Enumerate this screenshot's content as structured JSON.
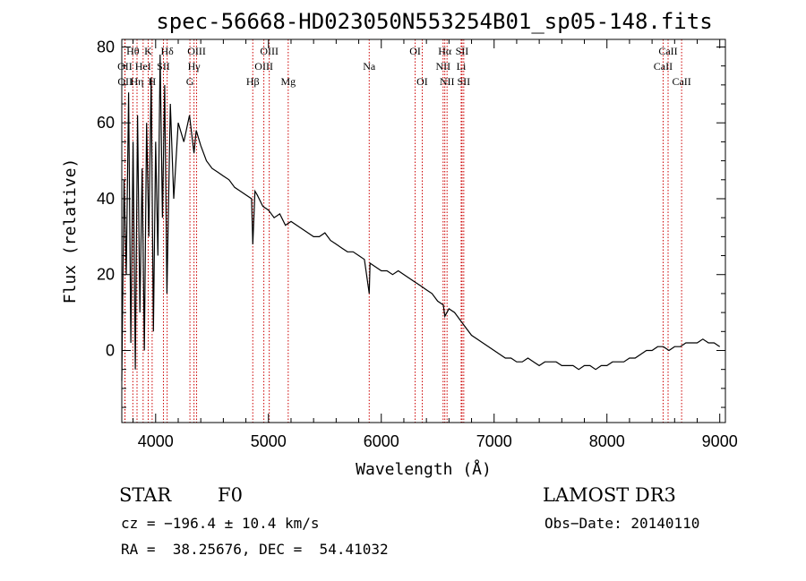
{
  "chart_data": {
    "type": "line",
    "title": "spec-56668-HD023050N553254B01_sp05-148.fits",
    "xlabel": "Wavelength (Å)",
    "ylabel": "Flux (relative)",
    "xlim": [
      3700,
      9050
    ],
    "ylim": [
      -19,
      82
    ],
    "xticks": [
      4000,
      5000,
      6000,
      7000,
      8000,
      9000
    ],
    "yticks": [
      0,
      20,
      40,
      60,
      80
    ],
    "series": [
      {
        "name": "spectrum",
        "x": [
          3700,
          3720,
          3740,
          3760,
          3780,
          3800,
          3820,
          3840,
          3860,
          3880,
          3900,
          3920,
          3940,
          3960,
          3980,
          4000,
          4020,
          4040,
          4060,
          4080,
          4100,
          4130,
          4160,
          4200,
          4250,
          4300,
          4340,
          4360,
          4400,
          4450,
          4500,
          4550,
          4600,
          4650,
          4700,
          4750,
          4800,
          4850,
          4861,
          4880,
          4900,
          4950,
          5000,
          5050,
          5100,
          5150,
          5200,
          5250,
          5300,
          5350,
          5400,
          5450,
          5500,
          5550,
          5600,
          5650,
          5700,
          5750,
          5800,
          5850,
          5893,
          5900,
          5950,
          6000,
          6050,
          6100,
          6150,
          6200,
          6250,
          6300,
          6350,
          6400,
          6450,
          6500,
          6550,
          6563,
          6600,
          6650,
          6700,
          6750,
          6800,
          6850,
          6900,
          6950,
          7000,
          7050,
          7100,
          7150,
          7200,
          7250,
          7300,
          7350,
          7400,
          7450,
          7500,
          7550,
          7600,
          7650,
          7700,
          7750,
          7800,
          7850,
          7900,
          7950,
          8000,
          8050,
          8100,
          8150,
          8200,
          8250,
          8300,
          8350,
          8400,
          8450,
          8500,
          8550,
          8600,
          8650,
          8700,
          8750,
          8800,
          8850,
          8900,
          8950,
          9000
        ],
        "y": [
          -8,
          45,
          20,
          68,
          2,
          55,
          -5,
          62,
          10,
          48,
          0,
          60,
          30,
          72,
          5,
          55,
          25,
          78,
          35,
          70,
          15,
          65,
          40,
          60,
          55,
          62,
          52,
          58,
          54,
          50,
          48,
          47,
          46,
          45,
          43,
          42,
          41,
          40,
          28,
          42,
          41,
          38,
          37,
          35,
          36,
          33,
          34,
          33,
          32,
          31,
          30,
          30,
          31,
          29,
          28,
          27,
          26,
          26,
          25,
          24,
          15,
          23,
          22,
          21,
          21,
          20,
          21,
          20,
          19,
          18,
          17,
          16,
          15,
          13,
          12,
          9,
          11,
          10,
          8,
          6,
          4,
          3,
          2,
          1,
          0,
          -1,
          -2,
          -2,
          -3,
          -3,
          -2,
          -3,
          -4,
          -3,
          -3,
          -3,
          -4,
          -4,
          -4,
          -5,
          -4,
          -4,
          -5,
          -4,
          -4,
          -3,
          -3,
          -3,
          -2,
          -2,
          -1,
          0,
          0,
          1,
          1,
          0,
          1,
          1,
          2,
          2,
          2,
          3,
          2,
          2,
          1
        ]
      }
    ],
    "line_labels": [
      {
        "label": "Hθ",
        "wave": 3798,
        "row": 1
      },
      {
        "label": "OII",
        "wave": 3727,
        "row": 2
      },
      {
        "label": "OII",
        "wave": 3729,
        "row": 3
      },
      {
        "label": "K",
        "wave": 3934,
        "row": 1
      },
      {
        "label": "H",
        "wave": 3969,
        "row": 3
      },
      {
        "label": "HeI",
        "wave": 3889,
        "row": 2
      },
      {
        "label": "Hη",
        "wave": 3835,
        "row": 3
      },
      {
        "label": "Hδ",
        "wave": 4102,
        "row": 1
      },
      {
        "label": "SII",
        "wave": 4069,
        "row": 2
      },
      {
        "label": "OIII",
        "wave": 4363,
        "row": 1
      },
      {
        "label": "Hγ",
        "wave": 4340,
        "row": 2
      },
      {
        "label": "G",
        "wave": 4304,
        "row": 3
      },
      {
        "label": "Hβ",
        "wave": 4861,
        "row": 3
      },
      {
        "label": "OIII",
        "wave": 5007,
        "row": 1
      },
      {
        "label": "OIII",
        "wave": 4959,
        "row": 2
      },
      {
        "label": "Mg",
        "wave": 5175,
        "row": 3
      },
      {
        "label": "Na",
        "wave": 5893,
        "row": 2
      },
      {
        "label": "OI",
        "wave": 6300,
        "row": 1
      },
      {
        "label": "OI",
        "wave": 6363,
        "row": 3
      },
      {
        "label": "Hα",
        "wave": 6563,
        "row": 1
      },
      {
        "label": "NII",
        "wave": 6548,
        "row": 2
      },
      {
        "label": "NII",
        "wave": 6583,
        "row": 3
      },
      {
        "label": "SII",
        "wave": 6716,
        "row": 1
      },
      {
        "label": "Li",
        "wave": 6708,
        "row": 2
      },
      {
        "label": "SII",
        "wave": 6731,
        "row": 3
      },
      {
        "label": "CaII",
        "wave": 8542,
        "row": 1
      },
      {
        "label": "CaII",
        "wave": 8498,
        "row": 2
      },
      {
        "label": "CaII",
        "wave": 8662,
        "row": 3
      }
    ],
    "marker_lines": [
      3727,
      3729,
      3798,
      3835,
      3889,
      3934,
      3969,
      4069,
      4102,
      4304,
      4340,
      4363,
      4861,
      4959,
      5007,
      5175,
      5893,
      6300,
      6363,
      6548,
      6563,
      6583,
      6708,
      6716,
      6731,
      8498,
      8542,
      8662
    ],
    "colors": {
      "spectrum": "#000000",
      "marker": "#cc0000",
      "axes": "#000000"
    }
  },
  "info": {
    "class": "STAR",
    "subclass": "F0",
    "survey": "LAMOST DR3",
    "cz": "cz = −196.4 ± 10.4 km/s",
    "obs_date": "Obs−Date: 20140110",
    "radec": "RA =  38.25676, DEC =  54.41032"
  }
}
